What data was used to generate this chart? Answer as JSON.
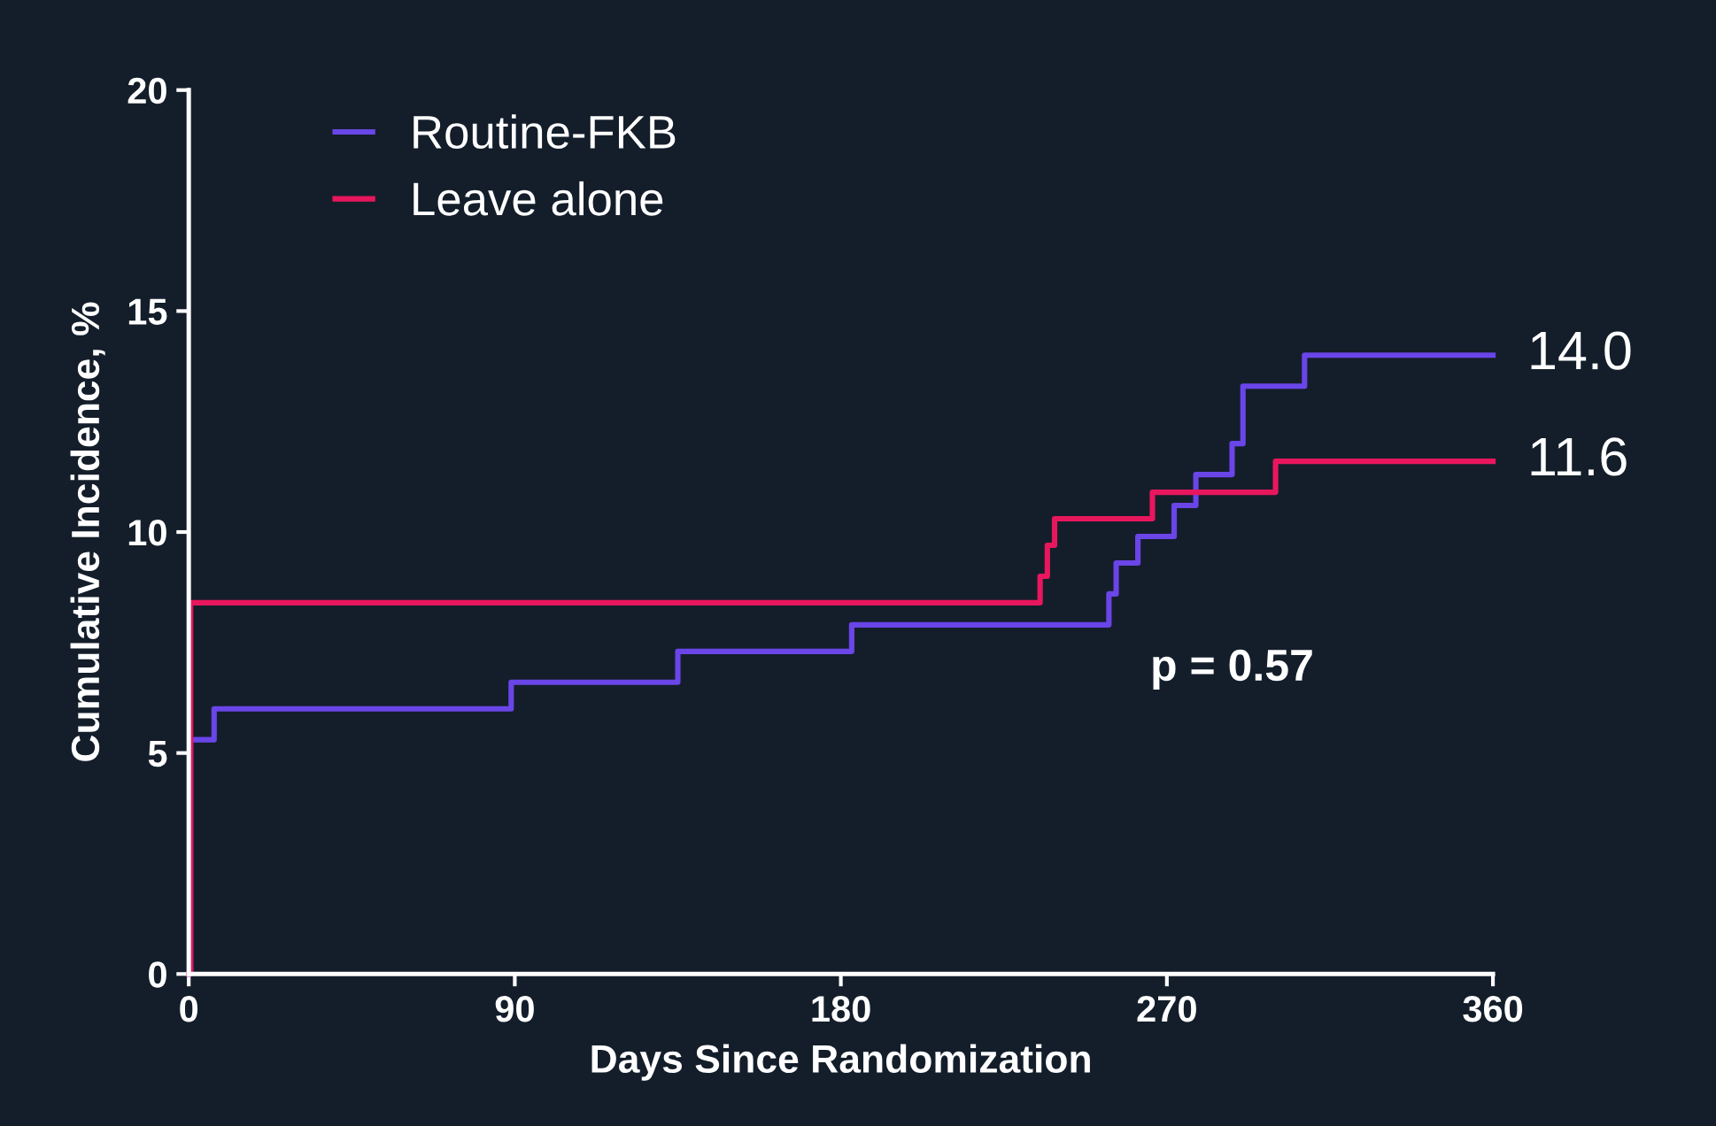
{
  "chart_data": {
    "type": "step",
    "xlabel": "Days Since Randomization",
    "ylabel": "Cumulative Incidence, %",
    "xlim": [
      0,
      360
    ],
    "xticks": [
      0,
      90,
      180,
      270,
      360
    ],
    "ylim": [
      0,
      20
    ],
    "yticks": [
      0,
      5,
      10,
      15,
      20
    ],
    "grid": false,
    "legend": "top left",
    "marker": "none",
    "line_style": "solid",
    "series": [
      {
        "name": "Routine-FKB",
        "color": "#6a45e8",
        "x": [
          0,
          0.5,
          7,
          89,
          135,
          183,
          254,
          256,
          262,
          272,
          278,
          288,
          291,
          308,
          360
        ],
        "values": [
          0,
          5.3,
          6.0,
          6.6,
          7.3,
          7.9,
          8.6,
          9.3,
          9.9,
          10.6,
          11.3,
          12.0,
          13.3,
          14.0,
          14.0
        ]
      },
      {
        "name": "Leave alone",
        "color": "#e8175d",
        "x": [
          0,
          0.5,
          235,
          237,
          239,
          266,
          300,
          360
        ],
        "values": [
          0,
          8.4,
          9.0,
          9.7,
          10.3,
          10.9,
          11.6,
          11.6
        ]
      }
    ],
    "annotations": [
      {
        "text": "14.0",
        "x": 360,
        "y": 14.0
      },
      {
        "text": "11.6",
        "x": 360,
        "y": 11.6
      },
      "p = 0.57"
    ]
  }
}
